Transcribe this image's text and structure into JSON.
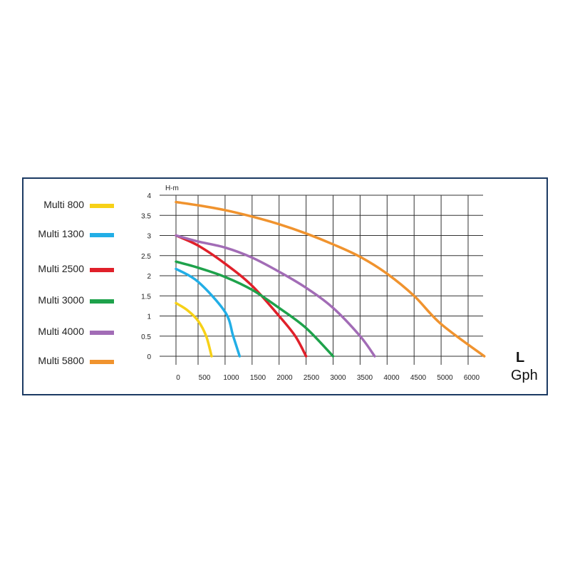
{
  "chart_data": {
    "type": "line",
    "ylabel": "H-m",
    "xlabel_top": "L",
    "xlabel_bottom": "Gph",
    "xlim": [
      0,
      6000
    ],
    "ylim": [
      0,
      4
    ],
    "x_ticks": [
      "0",
      "500",
      "1000",
      "1500",
      "2000",
      "2500",
      "3000",
      "3500",
      "4000",
      "4500",
      "5000",
      "6000"
    ],
    "y_ticks": [
      "4",
      "3.5",
      "3",
      "2.5",
      "2",
      "1.5",
      "1",
      "0.5",
      "0"
    ],
    "grid": true,
    "legend_position": "left",
    "series": [
      {
        "name": "Multi 800",
        "color": "#f7d117",
        "points": [
          [
            0,
            1.32
          ],
          [
            250,
            1.15
          ],
          [
            500,
            0.88
          ],
          [
            650,
            0.5
          ],
          [
            750,
            0
          ]
        ]
      },
      {
        "name": "Multi 1300",
        "color": "#22aee6",
        "points": [
          [
            0,
            2.17
          ],
          [
            500,
            1.85
          ],
          [
            1000,
            1.1
          ],
          [
            1150,
            0.5
          ],
          [
            1270,
            0
          ]
        ]
      },
      {
        "name": "Multi 2500",
        "color": "#e0202a",
        "points": [
          [
            0,
            3.0
          ],
          [
            500,
            2.75
          ],
          [
            1000,
            2.3
          ],
          [
            1500,
            1.75
          ],
          [
            2000,
            1.0
          ],
          [
            2300,
            0.5
          ],
          [
            2500,
            0
          ]
        ]
      },
      {
        "name": "Multi 3000",
        "color": "#1ea24b",
        "points": [
          [
            0,
            2.35
          ],
          [
            500,
            2.2
          ],
          [
            1000,
            1.97
          ],
          [
            1500,
            1.65
          ],
          [
            2000,
            1.2
          ],
          [
            2500,
            0.7
          ],
          [
            3000,
            0
          ]
        ]
      },
      {
        "name": "Multi 4000",
        "color": "#a26cb6",
        "points": [
          [
            0,
            3.0
          ],
          [
            500,
            2.85
          ],
          [
            1000,
            2.7
          ],
          [
            1500,
            2.45
          ],
          [
            2000,
            2.1
          ],
          [
            2500,
            1.7
          ],
          [
            3000,
            1.2
          ],
          [
            3500,
            0.5
          ],
          [
            3770,
            0
          ]
        ]
      },
      {
        "name": "Multi 5800",
        "color": "#f0932e",
        "points": [
          [
            0,
            3.83
          ],
          [
            500,
            3.75
          ],
          [
            1000,
            3.63
          ],
          [
            1500,
            3.47
          ],
          [
            2000,
            3.28
          ],
          [
            2500,
            3.05
          ],
          [
            3000,
            2.78
          ],
          [
            3500,
            2.47
          ],
          [
            4000,
            2.05
          ],
          [
            4500,
            1.5
          ],
          [
            5000,
            0.8
          ],
          [
            5800,
            0
          ]
        ]
      }
    ]
  }
}
